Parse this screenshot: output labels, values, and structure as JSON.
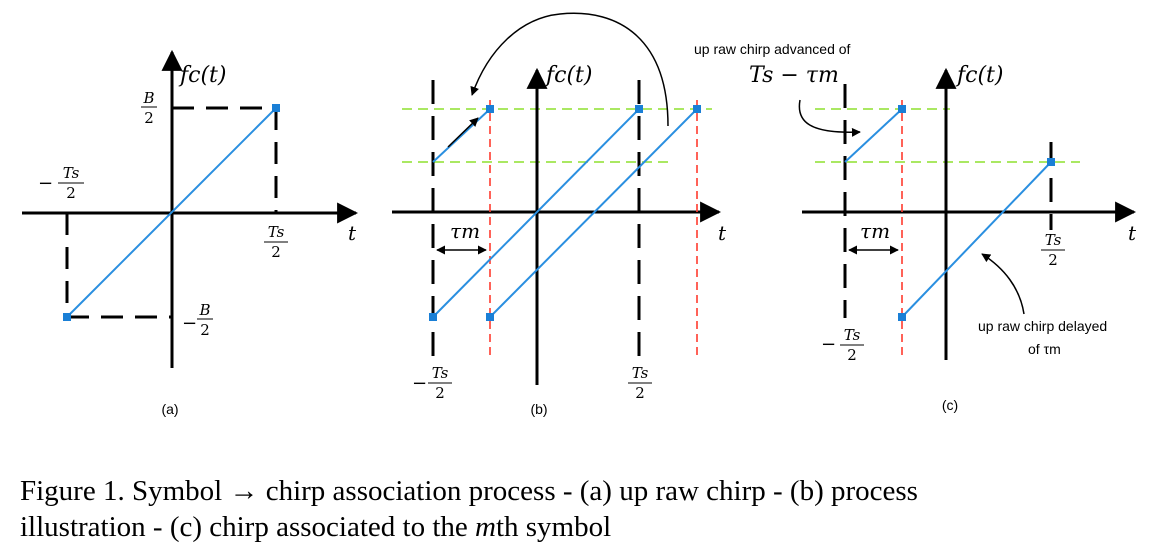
{
  "colors": {
    "axis": "#000000",
    "chirp": "#2a8fe0",
    "marker": "#1a7fd6",
    "red_guide": "#ff3b2f",
    "green_guide": "#8ee02e",
    "dashed": "#000000"
  },
  "panel_a": {
    "y_axis_label": "fc(t)",
    "x_axis_label": "t",
    "top_label_num": "B",
    "top_label_den": "2",
    "bottom_label_sign": "−",
    "bottom_label_num": "B",
    "bottom_label_den": "2",
    "left_label_sign": "−",
    "left_label_num": "Ts",
    "left_label_den": "2",
    "right_label_num": "Ts",
    "right_label_den": "2",
    "caption": "(a)"
  },
  "panel_b": {
    "y_axis_label": "fc(t)",
    "x_axis_label": "t",
    "tau_label": "τm",
    "left_label_sign": "−",
    "left_label_num": "Ts",
    "left_label_den": "2",
    "right_label_num": "Ts",
    "right_label_den": "2",
    "caption": "(b)"
  },
  "panel_c": {
    "y_axis_label": "fc(t)",
    "x_axis_label": "t",
    "tau_label": "τm",
    "left_label_sign": "−",
    "left_label_num": "Ts",
    "left_label_den": "2",
    "right_label_num": "Ts",
    "right_label_den": "2",
    "advanced_note": "up raw chirp advanced of",
    "advanced_formula": "Ts − τm",
    "delayed_note_line1": "up raw chirp delayed",
    "delayed_note_line2": "of τm",
    "caption": "(c)"
  },
  "caption": {
    "line1": "Figure 1.  Symbol → chirp association process - (a) up raw chirp - (b) process",
    "line2_pre": "illustration - (c) chirp associated to the ",
    "line2_m": "m",
    "line2_post": "th symbol"
  }
}
